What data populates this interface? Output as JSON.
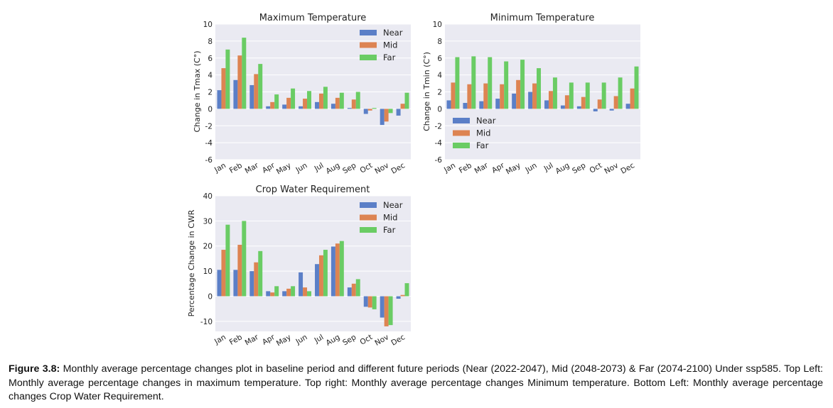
{
  "caption": {
    "label": "Figure 3.8:",
    "text": " Monthly average percentage changes plot in baseline period and different future periods (Near (2022-2047), Mid (2048-2073) & Far (2074-2100) Under ssp585. Top Left: Monthly average percentage changes in maximum temperature. Top right: Monthly average percentage changes Minimum temperature. Bottom Left: Monthly average percentage changes Crop Water Requirement."
  },
  "colors": {
    "near": "#5b7fc7",
    "mid": "#dd8452",
    "far": "#6acc64",
    "plot_bg": "#eaeaf2",
    "grid": "#ffffff"
  },
  "chart_data": [
    {
      "type": "bar",
      "title": "Maximum Temperature",
      "xlabel": "",
      "ylabel": "Change in Tmax (C°)",
      "ylim": [
        -6,
        10
      ],
      "yticks": [
        -6,
        -4,
        -2,
        0,
        2,
        4,
        6,
        8,
        10
      ],
      "grid": true,
      "legend": "top-right",
      "categories": [
        "Jan",
        "Feb",
        "Mar",
        "Apr",
        "May",
        "Jun",
        "Jul",
        "Aug",
        "Sep",
        "Oct",
        "Nov",
        "Dec"
      ],
      "series": [
        {
          "name": "Near",
          "values": [
            2.2,
            3.4,
            2.8,
            0.3,
            0.5,
            0.3,
            0.8,
            0.6,
            0.1,
            -0.6,
            -1.9,
            -0.8
          ]
        },
        {
          "name": "Mid",
          "values": [
            4.8,
            6.3,
            4.1,
            0.8,
            1.3,
            1.2,
            1.8,
            1.3,
            1.1,
            -0.2,
            -1.5,
            0.6
          ]
        },
        {
          "name": "Far",
          "values": [
            7.0,
            8.4,
            5.3,
            1.7,
            2.4,
            2.1,
            2.6,
            1.9,
            2.0,
            0.1,
            -0.5,
            1.9
          ]
        }
      ]
    },
    {
      "type": "bar",
      "title": "Minimum Temperature",
      "xlabel": "",
      "ylabel": "Change in Tmin (C°)",
      "ylim": [
        -6,
        10
      ],
      "yticks": [
        -6,
        -4,
        -2,
        0,
        2,
        4,
        6,
        8,
        10
      ],
      "grid": true,
      "legend": "lower-left",
      "categories": [
        "Jan",
        "Feb",
        "Mar",
        "Apr",
        "May",
        "Jun",
        "Jul",
        "Aug",
        "Sep",
        "Oct",
        "Nov",
        "Dec"
      ],
      "series": [
        {
          "name": "Near",
          "values": [
            1.0,
            0.7,
            0.9,
            1.2,
            1.8,
            2.0,
            1.0,
            0.4,
            0.3,
            -0.3,
            -0.2,
            0.6
          ]
        },
        {
          "name": "Mid",
          "values": [
            3.1,
            2.9,
            3.0,
            2.9,
            3.4,
            3.0,
            2.1,
            1.6,
            1.4,
            1.1,
            1.5,
            2.4
          ]
        },
        {
          "name": "Far",
          "values": [
            6.1,
            6.2,
            6.1,
            5.6,
            5.8,
            4.8,
            3.7,
            3.1,
            3.1,
            3.1,
            3.7,
            5.0
          ]
        }
      ]
    },
    {
      "type": "bar",
      "title": "Crop Water Requirement",
      "xlabel": "",
      "ylabel": "Percentage Change in CWR",
      "ylim": [
        -14,
        40
      ],
      "yticks": [
        -10,
        0,
        10,
        20,
        30,
        40
      ],
      "grid": true,
      "legend": "top-right",
      "categories": [
        "Jan",
        "Feb",
        "Mar",
        "Apr",
        "May",
        "Jun",
        "Jul",
        "Aug",
        "Sep",
        "Oct",
        "Nov",
        "Dec"
      ],
      "series": [
        {
          "name": "Near",
          "values": [
            10.5,
            10.5,
            10.0,
            2.0,
            2.0,
            9.5,
            12.8,
            19.8,
            3.5,
            -4.2,
            -8.5,
            -1.0
          ]
        },
        {
          "name": "Mid",
          "values": [
            18.5,
            20.5,
            13.5,
            1.5,
            3.0,
            3.5,
            16.3,
            21.0,
            5.0,
            -4.5,
            -12.0,
            0.5
          ]
        },
        {
          "name": "Far",
          "values": [
            28.5,
            30.0,
            18.0,
            4.0,
            4.0,
            2.0,
            18.5,
            22.0,
            6.8,
            -5.2,
            -11.5,
            5.2
          ]
        }
      ]
    }
  ]
}
